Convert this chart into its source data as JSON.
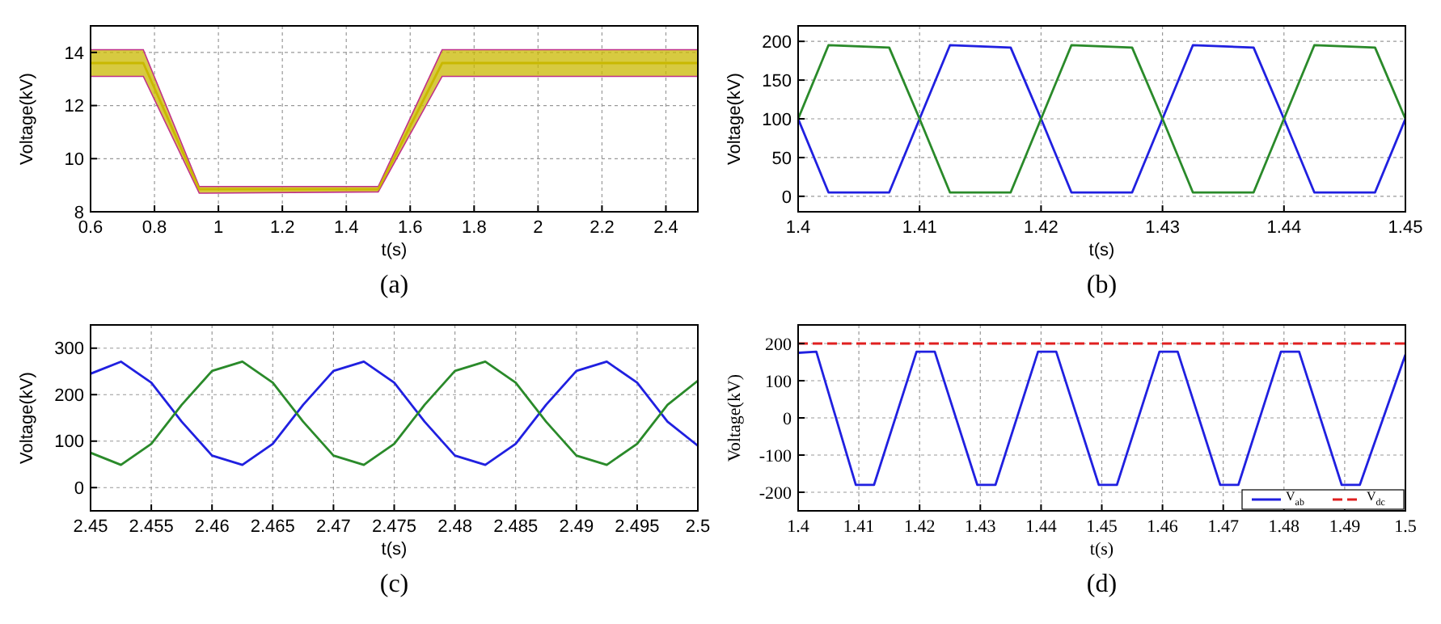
{
  "chart_data": [
    {
      "type": "line",
      "xlabel": "t(s)",
      "ylabel": "Voltage(kV)",
      "annotations": [
        "(a)"
      ],
      "xlim": [
        0.6,
        2.5
      ],
      "ylim": [
        8,
        15
      ],
      "xticks": [
        0.6,
        0.8,
        1,
        1.2,
        1.4,
        1.6,
        1.8,
        2,
        2.2,
        2.4
      ],
      "yticks": [
        8,
        10,
        12,
        14
      ],
      "grid": true,
      "series": [
        {
          "color": "#c9b800",
          "x": [
            0.6,
            0.765,
            0.94,
            1.5,
            1.7,
            2.5
          ],
          "values": [
            13.6,
            13.6,
            8.85,
            8.85,
            13.6,
            13.6
          ],
          "lower": [
            13.1,
            13.1,
            8.7,
            8.75,
            13.1,
            13.1
          ],
          "upper": [
            14.1,
            14.1,
            8.95,
            8.95,
            14.1,
            14.1
          ]
        }
      ]
    },
    {
      "type": "line",
      "xlabel": "t(s)",
      "ylabel": "Voltage(kV)",
      "annotations": [
        "(b)"
      ],
      "xlim": [
        1.4,
        1.45
      ],
      "ylim": [
        -20,
        220
      ],
      "xticks": [
        1.4,
        1.41,
        1.42,
        1.43,
        1.44,
        1.45
      ],
      "yticks": [
        0,
        50,
        100,
        150,
        200
      ],
      "grid": true,
      "x": [
        1.4,
        1.4025,
        1.4075,
        1.41,
        1.4125,
        1.4175,
        1.42,
        1.4225,
        1.4275,
        1.43,
        1.4325,
        1.4375,
        1.44,
        1.4425,
        1.4475,
        1.45
      ],
      "series": [
        {
          "color": "#2020e0",
          "values": [
            100,
            5,
            5,
            100,
            195,
            192,
            100,
            5,
            5,
            100,
            195,
            192,
            100,
            5,
            5,
            100
          ]
        },
        {
          "color": "#2a8a2a",
          "values": [
            100,
            195,
            192,
            100,
            5,
            5,
            100,
            195,
            192,
            100,
            5,
            5,
            100,
            195,
            192,
            100
          ]
        }
      ]
    },
    {
      "type": "line",
      "xlabel": "t(s)",
      "ylabel": "Voltage(kV)",
      "annotations": [
        "(c)"
      ],
      "xlim": [
        2.45,
        2.5
      ],
      "ylim": [
        -50,
        350
      ],
      "xticks": [
        2.45,
        2.455,
        2.46,
        2.465,
        2.47,
        2.475,
        2.48,
        2.485,
        2.49,
        2.495,
        2.5
      ],
      "yticks": [
        0,
        100,
        200,
        300
      ],
      "grid": true,
      "x": [
        2.45,
        2.4525,
        2.455,
        2.4575,
        2.46,
        2.4625,
        2.465,
        2.4675,
        2.47,
        2.4725,
        2.475,
        2.4775,
        2.48,
        2.4825,
        2.485,
        2.4875,
        2.49,
        2.4925,
        2.495,
        2.4975,
        2.5
      ],
      "series": [
        {
          "color": "#2020e0",
          "values": [
            245,
            271,
            226,
            142,
            69,
            49,
            94,
            178,
            251,
            271,
            226,
            142,
            69,
            49,
            94,
            178,
            251,
            271,
            226,
            142,
            90
          ]
        },
        {
          "color": "#2a8a2a",
          "values": [
            75,
            49,
            94,
            178,
            251,
            271,
            226,
            142,
            69,
            49,
            94,
            178,
            251,
            271,
            226,
            142,
            69,
            49,
            94,
            178,
            230
          ]
        }
      ]
    },
    {
      "type": "line",
      "xlabel": "t(s)",
      "ylabel": "Voltage(kV)",
      "annotations": [
        "(d)"
      ],
      "xlim": [
        1.4,
        1.5
      ],
      "ylim": [
        -250,
        250
      ],
      "xticks": [
        1.4,
        1.41,
        1.42,
        1.43,
        1.44,
        1.45,
        1.46,
        1.47,
        1.48,
        1.49,
        1.5
      ],
      "yticks": [
        -200,
        -100,
        0,
        100,
        200
      ],
      "grid": true,
      "legend": "bottom right",
      "series": [
        {
          "name": "V$_{ab}$",
          "color": "#2020e0",
          "line_style": "solid",
          "x": [
            1.4,
            1.403,
            1.4095,
            1.4125,
            1.4195,
            1.4225,
            1.4295,
            1.4325,
            1.4395,
            1.4425,
            1.4495,
            1.4525,
            1.4595,
            1.4625,
            1.4695,
            1.4725,
            1.4795,
            1.4825,
            1.4895,
            1.4925,
            1.5
          ],
          "values": [
            175,
            178,
            -180,
            -180,
            178,
            178,
            -180,
            -180,
            178,
            178,
            -180,
            -180,
            178,
            178,
            -180,
            -180,
            178,
            178,
            -180,
            -180,
            170
          ]
        },
        {
          "name": "V$_{dc}$",
          "color": "#e02020",
          "line_style": "dashed",
          "x": [
            1.4,
            1.5
          ],
          "values": [
            200,
            200
          ]
        }
      ]
    }
  ]
}
